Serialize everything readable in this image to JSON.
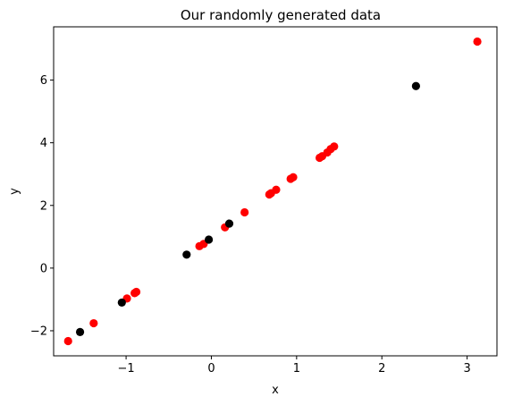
{
  "chart_data": {
    "type": "scatter",
    "title": "Our randomly generated data",
    "xlabel": "x",
    "ylabel": "y",
    "xlim": [
      -1.85,
      3.35
    ],
    "ylim": [
      -2.8,
      7.7
    ],
    "xticks": [
      -1,
      0,
      1,
      2,
      3
    ],
    "yticks": [
      -2,
      0,
      2,
      4,
      6
    ],
    "x_tick_labels": [
      "−1",
      "0",
      "1",
      "2",
      "3"
    ],
    "y_tick_labels": [
      "−2",
      "0",
      "2",
      "4",
      "6"
    ],
    "grid": false,
    "legend": "none",
    "series": [
      {
        "color": "#ff0000",
        "points": [
          {
            "x": -1.68,
            "y": -2.33
          },
          {
            "x": -1.38,
            "y": -1.76
          },
          {
            "x": -0.99,
            "y": -0.97
          },
          {
            "x": -0.9,
            "y": -0.8
          },
          {
            "x": -0.88,
            "y": -0.76
          },
          {
            "x": -0.14,
            "y": 0.7
          },
          {
            "x": -0.09,
            "y": 0.77
          },
          {
            "x": 0.16,
            "y": 1.3
          },
          {
            "x": 0.39,
            "y": 1.78
          },
          {
            "x": 0.68,
            "y": 2.35
          },
          {
            "x": 0.7,
            "y": 2.39
          },
          {
            "x": 0.76,
            "y": 2.5
          },
          {
            "x": 0.93,
            "y": 2.85
          },
          {
            "x": 0.96,
            "y": 2.9
          },
          {
            "x": 1.27,
            "y": 3.52
          },
          {
            "x": 1.3,
            "y": 3.57
          },
          {
            "x": 1.36,
            "y": 3.69
          },
          {
            "x": 1.4,
            "y": 3.8
          },
          {
            "x": 1.44,
            "y": 3.88
          },
          {
            "x": 3.12,
            "y": 7.23
          }
        ]
      },
      {
        "color": "#000000",
        "points": [
          {
            "x": -1.54,
            "y": -2.04
          },
          {
            "x": -1.05,
            "y": -1.1
          },
          {
            "x": -0.29,
            "y": 0.43
          },
          {
            "x": -0.03,
            "y": 0.91
          },
          {
            "x": 0.21,
            "y": 1.42
          },
          {
            "x": 2.4,
            "y": 5.81
          }
        ]
      }
    ]
  }
}
